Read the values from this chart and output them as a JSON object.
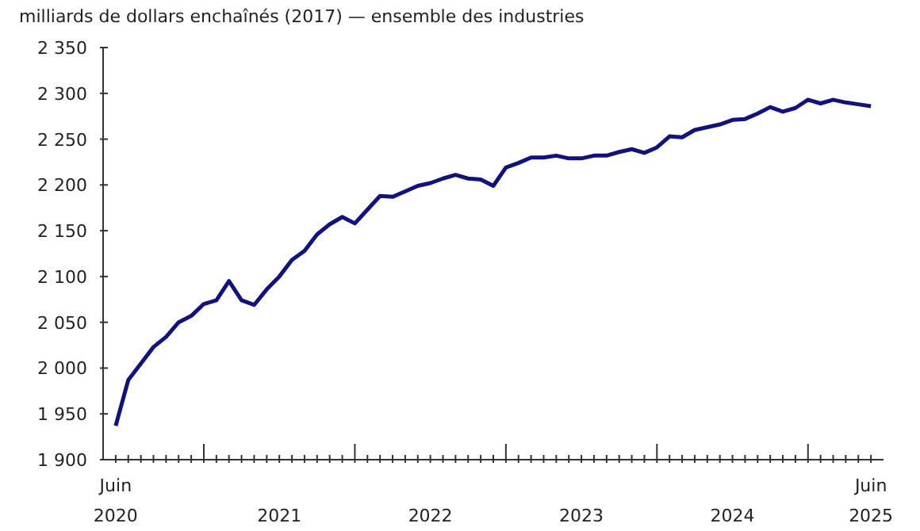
{
  "chart_data": {
    "type": "line",
    "ylabel": "milliards de dollars enchaînés (2017) — ensemble des industries",
    "x": [
      "2020-06",
      "2020-07",
      "2020-08",
      "2020-09",
      "2020-10",
      "2020-11",
      "2020-12",
      "2021-01",
      "2021-02",
      "2021-03",
      "2021-04",
      "2021-05",
      "2021-06",
      "2021-07",
      "2021-08",
      "2021-09",
      "2021-10",
      "2021-11",
      "2021-12",
      "2022-01",
      "2022-02",
      "2022-03",
      "2022-04",
      "2022-05",
      "2022-06",
      "2022-07",
      "2022-08",
      "2022-09",
      "2022-10",
      "2022-11",
      "2022-12",
      "2023-01",
      "2023-02",
      "2023-03",
      "2023-04",
      "2023-05",
      "2023-06",
      "2023-07",
      "2023-08",
      "2023-09",
      "2023-10",
      "2023-11",
      "2023-12",
      "2024-01",
      "2024-02",
      "2024-03",
      "2024-04",
      "2024-05",
      "2024-06",
      "2024-07",
      "2024-08",
      "2024-09",
      "2024-10",
      "2024-11",
      "2024-12",
      "2025-01",
      "2025-02",
      "2025-03",
      "2025-04",
      "2025-05",
      "2025-06"
    ],
    "series": [
      {
        "color": "#12127d",
        "values": [
          1937,
          1987,
          2005,
          2023,
          2034,
          2050,
          2057,
          2070,
          2074,
          2095,
          2074,
          2069,
          2086,
          2100,
          2118,
          2128,
          2146,
          2157,
          2165,
          2158,
          2173,
          2188,
          2187,
          2193,
          2199,
          2202,
          2207,
          2211,
          2207,
          2206,
          2199,
          2219,
          2224,
          2230,
          2230,
          2232,
          2229,
          2229,
          2232,
          2232,
          2236,
          2239,
          2235,
          2241,
          2253,
          2252,
          2260,
          2263,
          2266,
          2271,
          2272,
          2278,
          2285,
          2280,
          2284,
          2293,
          2289,
          2293,
          2290,
          2288,
          2286
        ]
      }
    ],
    "xlim": [
      "2020-05",
      "2025-07"
    ],
    "xticks": [
      {
        "value": "2020-06",
        "label": "Juin\n2020"
      },
      {
        "value": "2020-07",
        "label": null
      },
      {
        "value": "2020-08",
        "label": null
      },
      {
        "value": "2020-09",
        "label": null
      },
      {
        "value": "2020-10",
        "label": null
      },
      {
        "value": "2020-11",
        "label": null
      },
      {
        "value": "2020-12",
        "label": null
      },
      {
        "value": "2021-01",
        "label": null
      },
      {
        "value": "2021-02",
        "label": null
      },
      {
        "value": "2021-03",
        "label": null
      },
      {
        "value": "2021-04",
        "label": null
      },
      {
        "value": "2021-05",
        "label": null
      },
      {
        "value": "2021-06",
        "label": null
      },
      {
        "value": "2021-07",
        "label": "2021"
      },
      {
        "value": "2021-08",
        "label": null
      },
      {
        "value": "2021-09",
        "label": null
      },
      {
        "value": "2021-10",
        "label": null
      },
      {
        "value": "2021-11",
        "label": null
      },
      {
        "value": "2021-12",
        "label": null
      },
      {
        "value": "2022-01",
        "label": null
      },
      {
        "value": "2022-02",
        "label": null
      },
      {
        "value": "2022-03",
        "label": null
      },
      {
        "value": "2022-04",
        "label": null
      },
      {
        "value": "2022-05",
        "label": null
      },
      {
        "value": "2022-06",
        "label": null
      },
      {
        "value": "2022-07",
        "label": "2022"
      },
      {
        "value": "2022-08",
        "label": null
      },
      {
        "value": "2022-09",
        "label": null
      },
      {
        "value": "2022-10",
        "label": null
      },
      {
        "value": "2022-11",
        "label": null
      },
      {
        "value": "2022-12",
        "label": null
      },
      {
        "value": "2023-01",
        "label": null
      },
      {
        "value": "2023-02",
        "label": null
      },
      {
        "value": "2023-03",
        "label": null
      },
      {
        "value": "2023-04",
        "label": null
      },
      {
        "value": "2023-05",
        "label": null
      },
      {
        "value": "2023-06",
        "label": null
      },
      {
        "value": "2023-07",
        "label": "2023"
      },
      {
        "value": "2023-08",
        "label": null
      },
      {
        "value": "2023-09",
        "label": null
      },
      {
        "value": "2023-10",
        "label": null
      },
      {
        "value": "2023-11",
        "label": null
      },
      {
        "value": "2023-12",
        "label": null
      },
      {
        "value": "2024-01",
        "label": null
      },
      {
        "value": "2024-02",
        "label": null
      },
      {
        "value": "2024-03",
        "label": null
      },
      {
        "value": "2024-04",
        "label": null
      },
      {
        "value": "2024-05",
        "label": null
      },
      {
        "value": "2024-06",
        "label": null
      },
      {
        "value": "2024-07",
        "label": "2024"
      },
      {
        "value": "2024-08",
        "label": null
      },
      {
        "value": "2024-09",
        "label": null
      },
      {
        "value": "2024-10",
        "label": null
      },
      {
        "value": "2024-11",
        "label": null
      },
      {
        "value": "2024-12",
        "label": null
      },
      {
        "value": "2025-01",
        "label": null
      },
      {
        "value": "2025-02",
        "label": null
      },
      {
        "value": "2025-03",
        "label": null
      },
      {
        "value": "2025-04",
        "label": null
      },
      {
        "value": "2025-05",
        "label": null
      },
      {
        "value": "2025-06",
        "label": "Juin\n2025"
      }
    ],
    "ylim": [
      1900,
      2350
    ],
    "yticks": [
      {
        "value": 1900,
        "label": "1 900"
      },
      {
        "value": 1950,
        "label": "1 950"
      },
      {
        "value": 2000,
        "label": "2 000"
      },
      {
        "value": 2050,
        "label": "2 050"
      },
      {
        "value": 2100,
        "label": "2 100"
      },
      {
        "value": 2150,
        "label": "2 150"
      },
      {
        "value": 2200,
        "label": "2 200"
      },
      {
        "value": 2250,
        "label": "2 250"
      },
      {
        "value": 2300,
        "label": "2 300"
      },
      {
        "value": 2350,
        "label": "2 350"
      }
    ],
    "grid": false,
    "legend": false,
    "marker": "none",
    "line_style": "solid"
  }
}
